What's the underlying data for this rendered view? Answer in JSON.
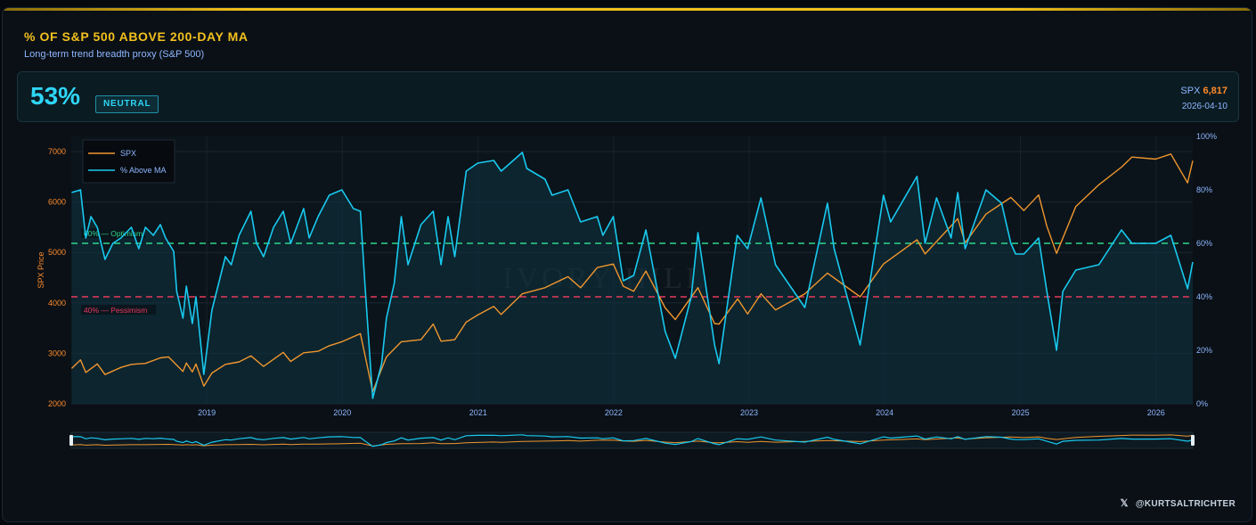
{
  "header": {
    "title": "% OF S&P 500 ABOVE 200-DAY MA",
    "subtitle": "Long-term trend breadth proxy (S&P 500)"
  },
  "stat": {
    "value": "53%",
    "badge": "NEUTRAL",
    "spx_label": "SPX",
    "spx_value": "6,817",
    "date": "2026-04-10"
  },
  "credit": {
    "icon": "x-logo-icon",
    "handle": "@KURTSALTRICHTER"
  },
  "watermark": "IVORY HILL",
  "colors": {
    "spx": "#f0962e",
    "breadth": "#19c9ef",
    "optimism": "#2fd58a",
    "pessimism": "#e8395c",
    "title": "#f2c01e",
    "left_axis": "#ff8a2a",
    "right_axis": "#8fb7ff"
  },
  "chart_data": {
    "type": "line",
    "grid": true,
    "legend_position": "top-left",
    "y_left_label": "SPX Price",
    "y_left_range": [
      2000,
      7300
    ],
    "y_left_ticks": [
      2000,
      3000,
      4000,
      5000,
      6000,
      7000
    ],
    "y_right_range": [
      0,
      100
    ],
    "y_right_ticks": [
      "0%",
      "20%",
      "40%",
      "60%",
      "80%",
      "100%"
    ],
    "x_range": [
      "2018-01-01",
      "2026-04-10"
    ],
    "x_ticks": [
      "2019",
      "2020",
      "2021",
      "2022",
      "2023",
      "2024",
      "2025",
      "2026"
    ],
    "reference_lines": [
      {
        "label": "60% — Optimism",
        "value": 60,
        "axis": "right"
      },
      {
        "label": "40% — Pessimism",
        "value": 40,
        "axis": "right"
      }
    ],
    "series": [
      {
        "name": "SPX",
        "axis": "left",
        "points": [
          [
            "2018-01-02",
            2700
          ],
          [
            "2018-01-26",
            2870
          ],
          [
            "2018-02-09",
            2620
          ],
          [
            "2018-03-12",
            2790
          ],
          [
            "2018-04-02",
            2580
          ],
          [
            "2018-05-15",
            2720
          ],
          [
            "2018-06-12",
            2780
          ],
          [
            "2018-07-20",
            2800
          ],
          [
            "2018-08-29",
            2910
          ],
          [
            "2018-09-20",
            2930
          ],
          [
            "2018-10-29",
            2640
          ],
          [
            "2018-11-07",
            2810
          ],
          [
            "2018-11-23",
            2630
          ],
          [
            "2018-12-03",
            2790
          ],
          [
            "2018-12-24",
            2350
          ],
          [
            "2019-01-15",
            2610
          ],
          [
            "2019-02-20",
            2780
          ],
          [
            "2019-03-29",
            2830
          ],
          [
            "2019-04-30",
            2950
          ],
          [
            "2019-06-03",
            2740
          ],
          [
            "2019-07-26",
            3020
          ],
          [
            "2019-08-15",
            2840
          ],
          [
            "2019-09-19",
            3010
          ],
          [
            "2019-10-28",
            3040
          ],
          [
            "2019-11-27",
            3150
          ],
          [
            "2019-12-31",
            3230
          ],
          [
            "2020-02-19",
            3390
          ],
          [
            "2020-03-23",
            2240
          ],
          [
            "2020-04-29",
            2930
          ],
          [
            "2020-06-08",
            3230
          ],
          [
            "2020-07-31",
            3270
          ],
          [
            "2020-09-02",
            3580
          ],
          [
            "2020-09-23",
            3240
          ],
          [
            "2020-10-30",
            3270
          ],
          [
            "2020-11-30",
            3620
          ],
          [
            "2020-12-31",
            3760
          ],
          [
            "2021-02-12",
            3930
          ],
          [
            "2021-03-04",
            3770
          ],
          [
            "2021-04-30",
            4180
          ],
          [
            "2021-06-30",
            4300
          ],
          [
            "2021-08-31",
            4520
          ],
          [
            "2021-10-04",
            4300
          ],
          [
            "2021-11-18",
            4700
          ],
          [
            "2021-12-31",
            4770
          ],
          [
            "2022-01-27",
            4330
          ],
          [
            "2022-02-24",
            4230
          ],
          [
            "2022-03-29",
            4630
          ],
          [
            "2022-05-20",
            3900
          ],
          [
            "2022-06-16",
            3670
          ],
          [
            "2022-08-16",
            4300
          ],
          [
            "2022-09-30",
            3590
          ],
          [
            "2022-10-12",
            3580
          ],
          [
            "2022-12-01",
            4080
          ],
          [
            "2022-12-28",
            3780
          ],
          [
            "2023-02-02",
            4180
          ],
          [
            "2023-03-13",
            3860
          ],
          [
            "2023-05-31",
            4180
          ],
          [
            "2023-07-31",
            4590
          ],
          [
            "2023-10-27",
            4120
          ],
          [
            "2023-12-29",
            4770
          ],
          [
            "2024-03-28",
            5250
          ],
          [
            "2024-04-19",
            4970
          ],
          [
            "2024-07-16",
            5670
          ],
          [
            "2024-08-05",
            5190
          ],
          [
            "2024-09-30",
            5760
          ],
          [
            "2024-12-06",
            6090
          ],
          [
            "2025-01-10",
            5830
          ],
          [
            "2025-02-19",
            6140
          ],
          [
            "2025-03-13",
            5520
          ],
          [
            "2025-04-08",
            4980
          ],
          [
            "2025-05-30",
            5910
          ],
          [
            "2025-07-31",
            6340
          ],
          [
            "2025-09-30",
            6690
          ],
          [
            "2025-10-28",
            6890
          ],
          [
            "2025-12-31",
            6850
          ],
          [
            "2026-02-10",
            6950
          ],
          [
            "2026-03-27",
            6380
          ],
          [
            "2026-04-10",
            6817
          ]
        ]
      },
      {
        "name": "% Above MA",
        "axis": "right",
        "points": [
          [
            "2018-01-02",
            79
          ],
          [
            "2018-01-26",
            80
          ],
          [
            "2018-02-09",
            62
          ],
          [
            "2018-02-23",
            70
          ],
          [
            "2018-03-12",
            66
          ],
          [
            "2018-04-02",
            54
          ],
          [
            "2018-04-23",
            60
          ],
          [
            "2018-05-15",
            62
          ],
          [
            "2018-06-12",
            66
          ],
          [
            "2018-07-02",
            58
          ],
          [
            "2018-07-20",
            66
          ],
          [
            "2018-08-10",
            63
          ],
          [
            "2018-08-29",
            67
          ],
          [
            "2018-09-12",
            62
          ],
          [
            "2018-10-04",
            57
          ],
          [
            "2018-10-12",
            42
          ],
          [
            "2018-10-29",
            32
          ],
          [
            "2018-11-07",
            44
          ],
          [
            "2018-11-23",
            30
          ],
          [
            "2018-12-03",
            40
          ],
          [
            "2018-12-24",
            11
          ],
          [
            "2019-01-15",
            35
          ],
          [
            "2019-02-20",
            55
          ],
          [
            "2019-03-08",
            52
          ],
          [
            "2019-03-29",
            63
          ],
          [
            "2019-04-30",
            72
          ],
          [
            "2019-05-15",
            60
          ],
          [
            "2019-06-03",
            55
          ],
          [
            "2019-06-30",
            66
          ],
          [
            "2019-07-26",
            72
          ],
          [
            "2019-08-15",
            60
          ],
          [
            "2019-09-19",
            73
          ],
          [
            "2019-10-04",
            62
          ],
          [
            "2019-10-28",
            70
          ],
          [
            "2019-11-27",
            78
          ],
          [
            "2019-12-31",
            80
          ],
          [
            "2020-01-31",
            73
          ],
          [
            "2020-02-19",
            72
          ],
          [
            "2020-03-02",
            45
          ],
          [
            "2020-03-23",
            2
          ],
          [
            "2020-04-16",
            15
          ],
          [
            "2020-04-29",
            32
          ],
          [
            "2020-05-20",
            45
          ],
          [
            "2020-06-08",
            70
          ],
          [
            "2020-06-26",
            52
          ],
          [
            "2020-07-31",
            67
          ],
          [
            "2020-09-02",
            72
          ],
          [
            "2020-09-23",
            52
          ],
          [
            "2020-10-12",
            70
          ],
          [
            "2020-10-30",
            55
          ],
          [
            "2020-11-30",
            87
          ],
          [
            "2020-12-31",
            90
          ],
          [
            "2021-02-12",
            91
          ],
          [
            "2021-03-04",
            87
          ],
          [
            "2021-04-30",
            94
          ],
          [
            "2021-05-12",
            88
          ],
          [
            "2021-06-30",
            84
          ],
          [
            "2021-07-19",
            78
          ],
          [
            "2021-08-31",
            80
          ],
          [
            "2021-10-04",
            68
          ],
          [
            "2021-11-18",
            70
          ],
          [
            "2021-12-03",
            63
          ],
          [
            "2021-12-31",
            70
          ],
          [
            "2022-01-27",
            46
          ],
          [
            "2022-02-24",
            48
          ],
          [
            "2022-03-29",
            65
          ],
          [
            "2022-05-20",
            27
          ],
          [
            "2022-06-16",
            17
          ],
          [
            "2022-07-29",
            40
          ],
          [
            "2022-08-16",
            64
          ],
          [
            "2022-09-30",
            22
          ],
          [
            "2022-10-12",
            15
          ],
          [
            "2022-11-30",
            63
          ],
          [
            "2022-12-28",
            58
          ],
          [
            "2023-02-02",
            77
          ],
          [
            "2023-03-13",
            52
          ],
          [
            "2023-05-31",
            36
          ],
          [
            "2023-07-31",
            75
          ],
          [
            "2023-08-18",
            58
          ],
          [
            "2023-10-27",
            22
          ],
          [
            "2023-12-29",
            78
          ],
          [
            "2024-01-17",
            68
          ],
          [
            "2024-03-28",
            85
          ],
          [
            "2024-04-19",
            60
          ],
          [
            "2024-05-20",
            77
          ],
          [
            "2024-06-28",
            62
          ],
          [
            "2024-07-16",
            79
          ],
          [
            "2024-08-05",
            58
          ],
          [
            "2024-09-30",
            80
          ],
          [
            "2024-11-11",
            75
          ],
          [
            "2024-12-06",
            60
          ],
          [
            "2024-12-19",
            56
          ],
          [
            "2025-01-10",
            56
          ],
          [
            "2025-02-19",
            62
          ],
          [
            "2025-03-13",
            42
          ],
          [
            "2025-04-08",
            20
          ],
          [
            "2025-04-25",
            42
          ],
          [
            "2025-05-30",
            50
          ],
          [
            "2025-07-31",
            52
          ],
          [
            "2025-09-30",
            65
          ],
          [
            "2025-10-28",
            60
          ],
          [
            "2025-12-31",
            60
          ],
          [
            "2026-02-10",
            63
          ],
          [
            "2026-03-27",
            43
          ],
          [
            "2026-04-10",
            53
          ]
        ]
      }
    ]
  }
}
